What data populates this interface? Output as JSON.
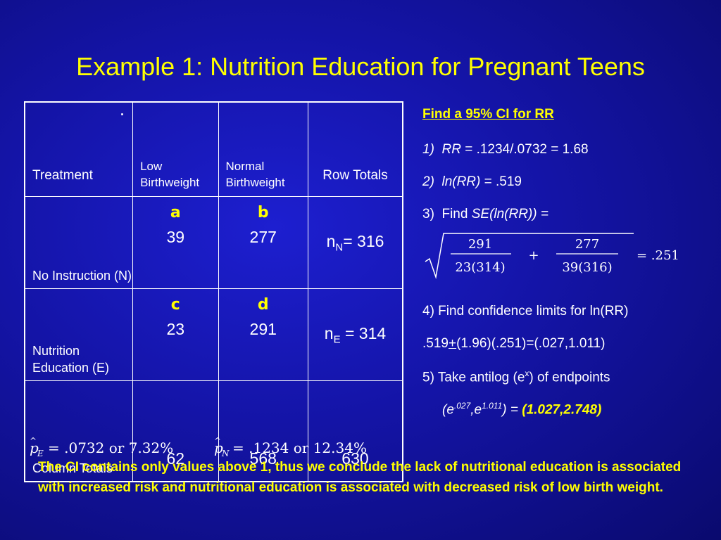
{
  "title": "Example 1: Nutrition Education for Pregnant Teens",
  "table": {
    "headers": {
      "treatment": "Treatment",
      "low": "Low Birthweight",
      "normal": "Normal Birthweight",
      "row_totals": "Row Totals"
    },
    "header_dot": ".",
    "rows": [
      {
        "label": "No Instruction (N)",
        "letter_a": "a",
        "low": "39",
        "letter_b": "b",
        "normal": "277",
        "total_prefix": "n",
        "total_sub": "N",
        "total_suffix": "= 316"
      },
      {
        "label": "Nutrition Education (E)",
        "letter_a": "c",
        "low": "23",
        "letter_b": "d",
        "normal": "291",
        "total_prefix": "n",
        "total_sub": "E",
        "total_suffix": " = 314"
      }
    ],
    "column_totals": {
      "label": "Column Totals",
      "low": "62",
      "normal": "568",
      "total": "630"
    }
  },
  "steps": {
    "heading": "Find a 95% CI for RR",
    "s1_num": "1)",
    "s1_var": "RR",
    "s1_rest": " = .1234/.0732 = 1.68",
    "s2_num": "2)",
    "s2_var": "ln(RR)",
    "s2_rest": " = .519",
    "s3_num": "3)",
    "s3_text": "Find ",
    "s3_var": "SE(ln(RR)) =",
    "s4": "4) Find confidence limits for ln(RR)",
    "s4b_a": ".519",
    "s4b_pm": "+",
    "s4b_b": "(1.96)(.251)=(.027,1.011)",
    "s5_a": "5) Take antilog (e",
    "s5_sup": "x",
    "s5_b": ") of endpoints",
    "s6_a": "(e",
    "s6_sup1": ".027",
    "s6_mid": ",e",
    "s6_sup2": "1.011",
    "s6_b": ") = ",
    "s6_result": "(1.027,2.748)"
  },
  "formula": {
    "num1": "291",
    "den1": "23(314)",
    "plus": "+",
    "num2": "277",
    "den2": "39(316)",
    "result": "= .251"
  },
  "phat": {
    "p_e_sub": "E",
    "p_e_value": "= .0732  or  7.32%",
    "p_n_sub": "N",
    "p_n_value": "= .1234  or  12.34%"
  },
  "conclusion": "The CI contains only values above 1, thus we conclude the lack of nutritional education is associated with increased risk and nutritional education is associated with decreased risk of low birth weight.",
  "colors": {
    "background": "#1414a6",
    "accent": "#ffff00",
    "text": "#ffffff"
  }
}
